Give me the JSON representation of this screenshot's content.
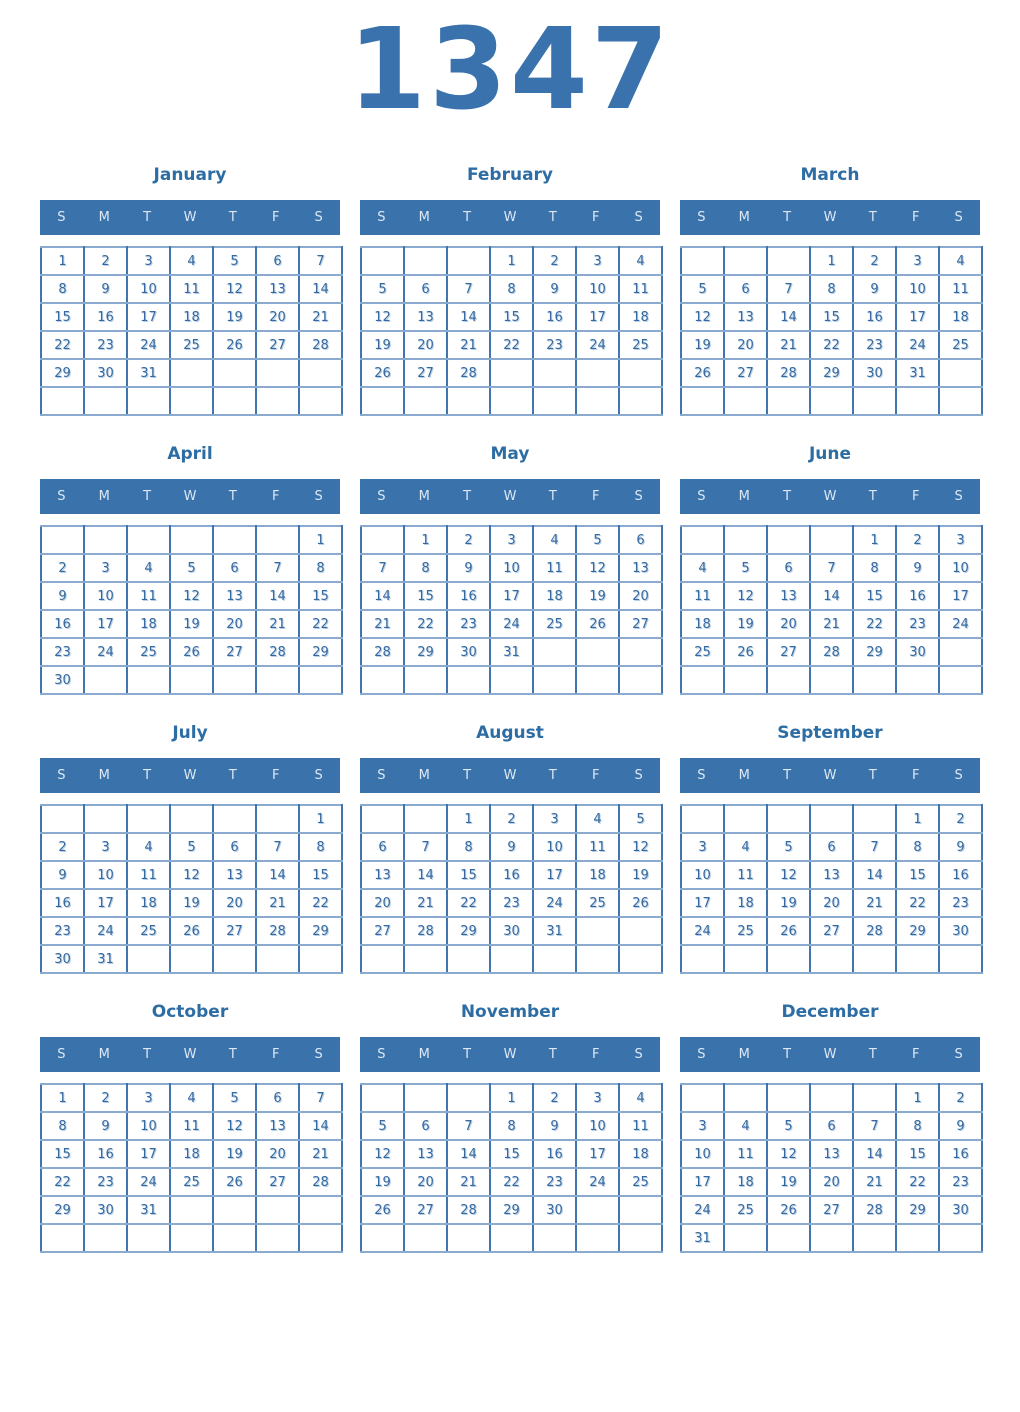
{
  "year": "1347",
  "weekday_headers": [
    "S",
    "M",
    "T",
    "W",
    "T",
    "F",
    "S"
  ],
  "colors": {
    "year_title": "#3a72ad",
    "month_title": "#2d6da4",
    "header_bg": "#3a72ac",
    "header_text": "#dde8f3",
    "day_text": "#36699f",
    "border_vertical": "#4075b0",
    "border_horizontal": "#8aaad0",
    "page_background": "#ffffff"
  },
  "months": [
    {
      "name": "January",
      "weeks": [
        [
          "1",
          "2",
          "3",
          "4",
          "5",
          "6",
          "7"
        ],
        [
          "8",
          "9",
          "10",
          "11",
          "12",
          "13",
          "14"
        ],
        [
          "15",
          "16",
          "17",
          "18",
          "19",
          "20",
          "21"
        ],
        [
          "22",
          "23",
          "24",
          "25",
          "26",
          "27",
          "28"
        ],
        [
          "29",
          "30",
          "31",
          "",
          "",
          "",
          ""
        ],
        [
          "",
          "",
          "",
          "",
          "",
          "",
          ""
        ]
      ]
    },
    {
      "name": "February",
      "weeks": [
        [
          "",
          "",
          "",
          "1",
          "2",
          "3",
          "4"
        ],
        [
          "5",
          "6",
          "7",
          "8",
          "9",
          "10",
          "11"
        ],
        [
          "12",
          "13",
          "14",
          "15",
          "16",
          "17",
          "18"
        ],
        [
          "19",
          "20",
          "21",
          "22",
          "23",
          "24",
          "25"
        ],
        [
          "26",
          "27",
          "28",
          "",
          "",
          "",
          ""
        ],
        [
          "",
          "",
          "",
          "",
          "",
          "",
          ""
        ]
      ]
    },
    {
      "name": "March",
      "weeks": [
        [
          "",
          "",
          "",
          "1",
          "2",
          "3",
          "4"
        ],
        [
          "5",
          "6",
          "7",
          "8",
          "9",
          "10",
          "11"
        ],
        [
          "12",
          "13",
          "14",
          "15",
          "16",
          "17",
          "18"
        ],
        [
          "19",
          "20",
          "21",
          "22",
          "23",
          "24",
          "25"
        ],
        [
          "26",
          "27",
          "28",
          "29",
          "30",
          "31",
          ""
        ],
        [
          "",
          "",
          "",
          "",
          "",
          "",
          ""
        ]
      ]
    },
    {
      "name": "April",
      "weeks": [
        [
          "",
          "",
          "",
          "",
          "",
          "",
          "1"
        ],
        [
          "2",
          "3",
          "4",
          "5",
          "6",
          "7",
          "8"
        ],
        [
          "9",
          "10",
          "11",
          "12",
          "13",
          "14",
          "15"
        ],
        [
          "16",
          "17",
          "18",
          "19",
          "20",
          "21",
          "22"
        ],
        [
          "23",
          "24",
          "25",
          "26",
          "27",
          "28",
          "29"
        ],
        [
          "30",
          "",
          "",
          "",
          "",
          "",
          ""
        ]
      ]
    },
    {
      "name": "May",
      "weeks": [
        [
          "",
          "1",
          "2",
          "3",
          "4",
          "5",
          "6"
        ],
        [
          "7",
          "8",
          "9",
          "10",
          "11",
          "12",
          "13"
        ],
        [
          "14",
          "15",
          "16",
          "17",
          "18",
          "19",
          "20"
        ],
        [
          "21",
          "22",
          "23",
          "24",
          "25",
          "26",
          "27"
        ],
        [
          "28",
          "29",
          "30",
          "31",
          "",
          "",
          ""
        ],
        [
          "",
          "",
          "",
          "",
          "",
          "",
          ""
        ]
      ]
    },
    {
      "name": "June",
      "weeks": [
        [
          "",
          "",
          "",
          "",
          "1",
          "2",
          "3"
        ],
        [
          "4",
          "5",
          "6",
          "7",
          "8",
          "9",
          "10"
        ],
        [
          "11",
          "12",
          "13",
          "14",
          "15",
          "16",
          "17"
        ],
        [
          "18",
          "19",
          "20",
          "21",
          "22",
          "23",
          "24"
        ],
        [
          "25",
          "26",
          "27",
          "28",
          "29",
          "30",
          ""
        ],
        [
          "",
          "",
          "",
          "",
          "",
          "",
          ""
        ]
      ]
    },
    {
      "name": "July",
      "weeks": [
        [
          "",
          "",
          "",
          "",
          "",
          "",
          "1"
        ],
        [
          "2",
          "3",
          "4",
          "5",
          "6",
          "7",
          "8"
        ],
        [
          "9",
          "10",
          "11",
          "12",
          "13",
          "14",
          "15"
        ],
        [
          "16",
          "17",
          "18",
          "19",
          "20",
          "21",
          "22"
        ],
        [
          "23",
          "24",
          "25",
          "26",
          "27",
          "28",
          "29"
        ],
        [
          "30",
          "31",
          "",
          "",
          "",
          "",
          ""
        ]
      ]
    },
    {
      "name": "August",
      "weeks": [
        [
          "",
          "",
          "1",
          "2",
          "3",
          "4",
          "5"
        ],
        [
          "6",
          "7",
          "8",
          "9",
          "10",
          "11",
          "12"
        ],
        [
          "13",
          "14",
          "15",
          "16",
          "17",
          "18",
          "19"
        ],
        [
          "20",
          "21",
          "22",
          "23",
          "24",
          "25",
          "26"
        ],
        [
          "27",
          "28",
          "29",
          "30",
          "31",
          "",
          ""
        ],
        [
          "",
          "",
          "",
          "",
          "",
          "",
          ""
        ]
      ]
    },
    {
      "name": "September",
      "weeks": [
        [
          "",
          "",
          "",
          "",
          "",
          "1",
          "2"
        ],
        [
          "3",
          "4",
          "5",
          "6",
          "7",
          "8",
          "9"
        ],
        [
          "10",
          "11",
          "12",
          "13",
          "14",
          "15",
          "16"
        ],
        [
          "17",
          "18",
          "19",
          "20",
          "21",
          "22",
          "23"
        ],
        [
          "24",
          "25",
          "26",
          "27",
          "28",
          "29",
          "30"
        ],
        [
          "",
          "",
          "",
          "",
          "",
          "",
          ""
        ]
      ]
    },
    {
      "name": "October",
      "weeks": [
        [
          "1",
          "2",
          "3",
          "4",
          "5",
          "6",
          "7"
        ],
        [
          "8",
          "9",
          "10",
          "11",
          "12",
          "13",
          "14"
        ],
        [
          "15",
          "16",
          "17",
          "18",
          "19",
          "20",
          "21"
        ],
        [
          "22",
          "23",
          "24",
          "25",
          "26",
          "27",
          "28"
        ],
        [
          "29",
          "30",
          "31",
          "",
          "",
          "",
          ""
        ],
        [
          "",
          "",
          "",
          "",
          "",
          "",
          ""
        ]
      ]
    },
    {
      "name": "November",
      "weeks": [
        [
          "",
          "",
          "",
          "1",
          "2",
          "3",
          "4"
        ],
        [
          "5",
          "6",
          "7",
          "8",
          "9",
          "10",
          "11"
        ],
        [
          "12",
          "13",
          "14",
          "15",
          "16",
          "17",
          "18"
        ],
        [
          "19",
          "20",
          "21",
          "22",
          "23",
          "24",
          "25"
        ],
        [
          "26",
          "27",
          "28",
          "29",
          "30",
          "",
          ""
        ],
        [
          "",
          "",
          "",
          "",
          "",
          "",
          ""
        ]
      ]
    },
    {
      "name": "December",
      "weeks": [
        [
          "",
          "",
          "",
          "",
          "",
          "1",
          "2"
        ],
        [
          "3",
          "4",
          "5",
          "6",
          "7",
          "8",
          "9"
        ],
        [
          "10",
          "11",
          "12",
          "13",
          "14",
          "15",
          "16"
        ],
        [
          "17",
          "18",
          "19",
          "20",
          "21",
          "22",
          "23"
        ],
        [
          "24",
          "25",
          "26",
          "27",
          "28",
          "29",
          "30"
        ],
        [
          "31",
          "",
          "",
          "",
          "",
          "",
          ""
        ]
      ]
    }
  ]
}
